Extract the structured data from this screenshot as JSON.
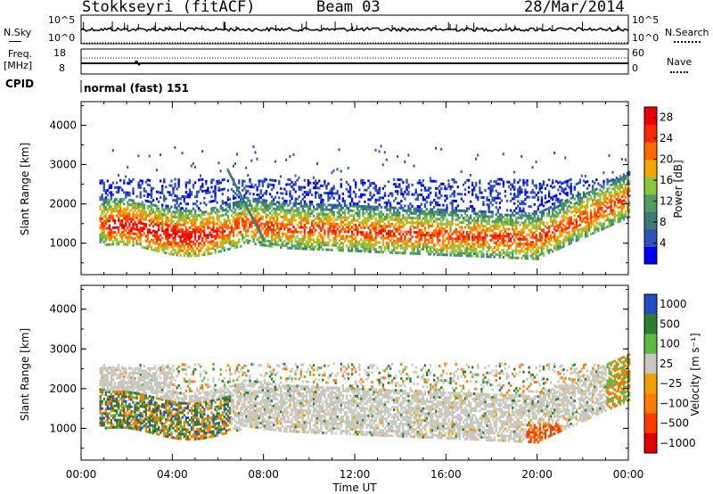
{
  "header": {
    "station": "Stokkseyri (fitACF)",
    "beam": "Beam 03",
    "date": "28/Mar/2014"
  },
  "side_labels": {
    "nsky": "N.Sky",
    "nsearch": "N.Search",
    "freq_top": "Freq.",
    "freq_unit": "[MHz]",
    "nave": "Nave",
    "cpid": "CPID",
    "nsky_tick_hi": "10^5",
    "nsky_tick_lo": "10^0",
    "nsearch_tick_hi": "10^5",
    "nsearch_tick_lo": "10^0",
    "freq_tick_hi": "18",
    "freq_tick_lo": "8",
    "nave_tick_hi": "60",
    "nave_tick_lo": "0"
  },
  "cpid_text": "normal (fast) 151",
  "colors": {
    "power_scale": [
      "#0000ff",
      "#2a52b8",
      "#3c7a78",
      "#4f9d63",
      "#8cc63f",
      "#f5a700",
      "#ff6a00",
      "#ff2a00",
      "#ee0000"
    ],
    "velocity_scale": [
      "#1f4fc0",
      "#2e7d32",
      "#5dbb3f",
      "#c8c8c0",
      "#f0a000",
      "#ff7a00",
      "#ff3b00",
      "#e00000"
    ]
  },
  "chart_data": [
    {
      "type": "heatmap",
      "name": "power",
      "xlabel": "",
      "ylabel": "Slant Range [km]",
      "xlim": [
        "00:00",
        "24:00"
      ],
      "ylim": [
        200,
        4600
      ],
      "yticks": [
        1000,
        2000,
        3000,
        4000
      ],
      "colorbar": {
        "label": "Power [dB]",
        "ticks": [
          4,
          8,
          12,
          16,
          20,
          24,
          28
        ],
        "range": [
          0,
          30
        ]
      }
    },
    {
      "type": "heatmap",
      "name": "velocity",
      "xlabel": "Time UT",
      "ylabel": "Slant Range [km]",
      "xticks": [
        "00:00",
        "04:00",
        "08:00",
        "12:00",
        "16:00",
        "20:00",
        "00:00"
      ],
      "xlim": [
        "00:00",
        "24:00"
      ],
      "ylim": [
        200,
        4600
      ],
      "yticks": [
        1000,
        2000,
        3000,
        4000
      ],
      "colorbar": {
        "label": "Velocity [m s⁻¹]",
        "ticks": [
          "1000",
          "500",
          "100",
          "25",
          "−25",
          "−100",
          "−500",
          "−1000"
        ]
      }
    }
  ]
}
